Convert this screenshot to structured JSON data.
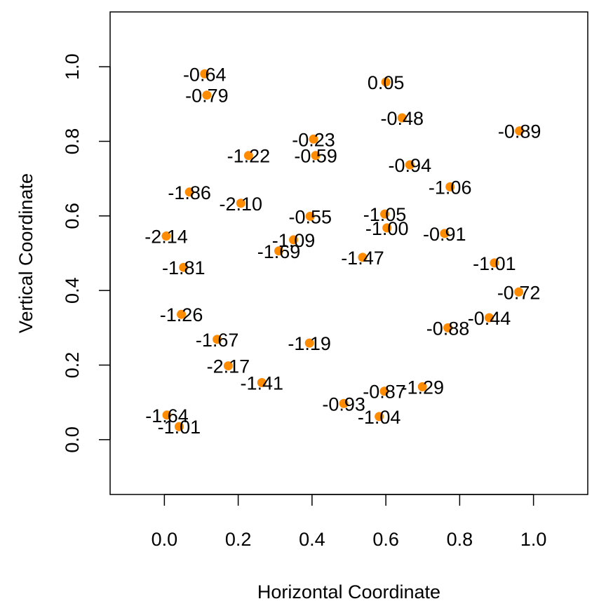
{
  "chart_data": {
    "type": "scatter",
    "title": "",
    "xlabel": "Horizontal Coordinate",
    "ylabel": "Vertical Coordinate",
    "xlim": [
      -0.147,
      1.147
    ],
    "ylim": [
      -0.147,
      1.147
    ],
    "xticks": [
      0.0,
      0.2,
      0.4,
      0.6,
      0.8,
      1.0
    ],
    "yticks": [
      0.0,
      0.2,
      0.4,
      0.6,
      0.8,
      1.0
    ],
    "xtick_labels": [
      "0.0",
      "0.2",
      "0.4",
      "0.6",
      "0.8",
      "1.0"
    ],
    "ytick_labels": [
      "0.0",
      "0.2",
      "0.4",
      "0.6",
      "0.8",
      "1.0"
    ],
    "grid": false,
    "point_color": "#FF8C00",
    "points": [
      {
        "x": 0.109,
        "y": 0.981,
        "label": "-0.64"
      },
      {
        "x": 0.115,
        "y": 0.924,
        "label": "-0.79"
      },
      {
        "x": 0.6,
        "y": 0.959,
        "label": "0.05"
      },
      {
        "x": 0.644,
        "y": 0.863,
        "label": "-0.48"
      },
      {
        "x": 0.962,
        "y": 0.828,
        "label": "-0.89"
      },
      {
        "x": 0.404,
        "y": 0.806,
        "label": "-0.23"
      },
      {
        "x": 0.41,
        "y": 0.762,
        "label": "-0.59"
      },
      {
        "x": 0.228,
        "y": 0.762,
        "label": "-1.22"
      },
      {
        "x": 0.665,
        "y": 0.737,
        "label": "-0.94"
      },
      {
        "x": 0.774,
        "y": 0.678,
        "label": "-1.06"
      },
      {
        "x": 0.068,
        "y": 0.664,
        "label": "-1.86"
      },
      {
        "x": 0.207,
        "y": 0.634,
        "label": "-2.10"
      },
      {
        "x": 0.395,
        "y": 0.599,
        "label": "-0.55"
      },
      {
        "x": 0.597,
        "y": 0.605,
        "label": "-1.05"
      },
      {
        "x": 0.603,
        "y": 0.568,
        "label": "-1.00"
      },
      {
        "x": 0.759,
        "y": 0.553,
        "label": "-0.91"
      },
      {
        "x": 0.005,
        "y": 0.546,
        "label": "-2.14"
      },
      {
        "x": 0.35,
        "y": 0.536,
        "label": "-1.09"
      },
      {
        "x": 0.31,
        "y": 0.506,
        "label": "-1.69"
      },
      {
        "x": 0.537,
        "y": 0.489,
        "label": "-1.47"
      },
      {
        "x": 0.894,
        "y": 0.474,
        "label": "-1.01"
      },
      {
        "x": 0.052,
        "y": 0.462,
        "label": "-1.81"
      },
      {
        "x": 0.96,
        "y": 0.396,
        "label": "-0.72"
      },
      {
        "x": 0.046,
        "y": 0.336,
        "label": "-1.26"
      },
      {
        "x": 0.88,
        "y": 0.327,
        "label": "-0.44"
      },
      {
        "x": 0.768,
        "y": 0.3,
        "label": "-0.88"
      },
      {
        "x": 0.143,
        "y": 0.269,
        "label": "-1.67"
      },
      {
        "x": 0.393,
        "y": 0.259,
        "label": "-1.19"
      },
      {
        "x": 0.173,
        "y": 0.198,
        "label": "-2.17"
      },
      {
        "x": 0.264,
        "y": 0.153,
        "label": "-1.41"
      },
      {
        "x": 0.699,
        "y": 0.142,
        "label": "-1.29"
      },
      {
        "x": 0.596,
        "y": 0.13,
        "label": "-0.87"
      },
      {
        "x": 0.486,
        "y": 0.097,
        "label": "-0.93"
      },
      {
        "x": 0.582,
        "y": 0.062,
        "label": "-1.04"
      },
      {
        "x": 0.007,
        "y": 0.066,
        "label": "-1.64"
      },
      {
        "x": 0.04,
        "y": 0.035,
        "label": "-1.01"
      }
    ]
  }
}
